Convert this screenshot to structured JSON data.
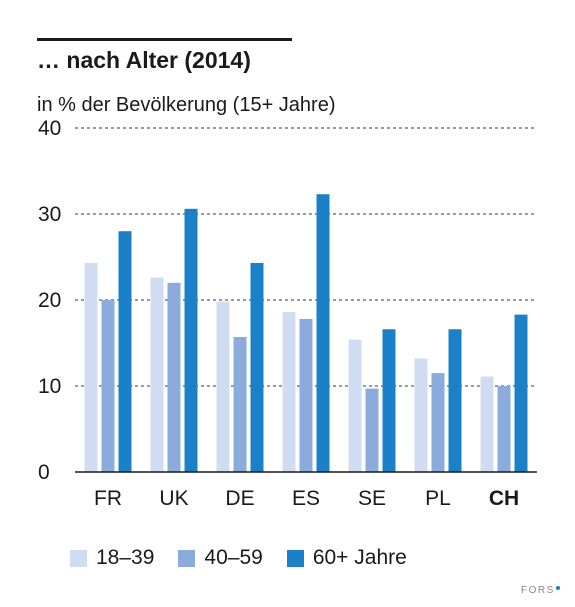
{
  "title": "… nach Alter (2014)",
  "subtitle": "in % der Bevölkerung (15+ Jahre)",
  "source": "FORS",
  "chart_data": {
    "type": "bar",
    "title": "… nach Alter (2014)",
    "ylabel": "in % der Bevölkerung (15+ Jahre)",
    "categories": [
      "FR",
      "UK",
      "DE",
      "ES",
      "SE",
      "PL",
      "CH"
    ],
    "highlight_category": "CH",
    "ylim": [
      0,
      40
    ],
    "yticks": [
      "0",
      "10",
      "20",
      "30",
      "40"
    ],
    "grid": "dashed horizontal",
    "legend_position": "bottom",
    "series": [
      {
        "name": "18–39",
        "color": "#cfdcf2",
        "values": [
          24.3,
          22.6,
          19.8,
          18.6,
          15.4,
          13.2,
          11.1
        ]
      },
      {
        "name": "40–59",
        "color": "#8aabdb",
        "values": [
          20.0,
          22.0,
          15.7,
          17.8,
          9.7,
          11.5,
          10.0
        ]
      },
      {
        "name": "60+ Jahre",
        "color": "#1a80c8",
        "values": [
          28.0,
          30.6,
          24.3,
          32.3,
          16.6,
          16.6,
          18.3
        ]
      }
    ]
  }
}
